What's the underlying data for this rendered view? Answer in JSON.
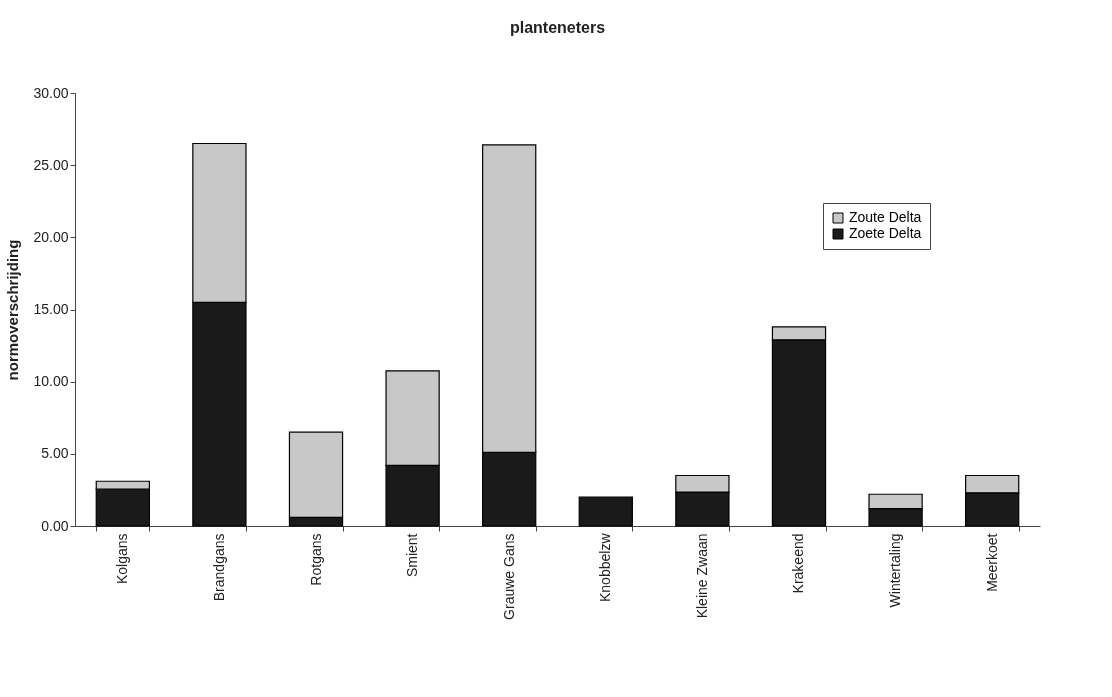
{
  "chart_data": {
    "type": "bar",
    "title": "planteneters",
    "ylabel": "normoverschrijding",
    "stacked": true,
    "legend": "top right",
    "grid": false,
    "categories": [
      "Kolgans",
      "Brandgans",
      "Rotgans",
      "Smient",
      "Grauwe Gans",
      "Knobbelzw",
      "Kleine Zwaan",
      "Krakeend",
      "Wintertaling",
      "Meerkoet"
    ],
    "series": [
      {
        "name": "Zoete Delta",
        "color": "#1a1a1a",
        "values": [
          2.55,
          15.5,
          0.6,
          4.2,
          5.1,
          2.0,
          2.35,
          12.9,
          1.2,
          2.3
        ]
      },
      {
        "name": "Zoute Delta",
        "color": "#c8c8c8",
        "values": [
          0.55,
          11.0,
          5.9,
          6.55,
          21.3,
          null,
          1.15,
          0.9,
          1.0,
          1.2
        ]
      }
    ],
    "ylim": [
      0,
      30
    ],
    "yticks": [
      {
        "value": 0,
        "label": "0.00"
      },
      {
        "value": 5,
        "label": "5.00"
      },
      {
        "value": 10,
        "label": "10.00"
      },
      {
        "value": 15,
        "label": "15.00"
      },
      {
        "value": 20,
        "label": "20.00"
      },
      {
        "value": 25,
        "label": "25.00"
      },
      {
        "value": 30,
        "label": "30.00"
      }
    ]
  }
}
